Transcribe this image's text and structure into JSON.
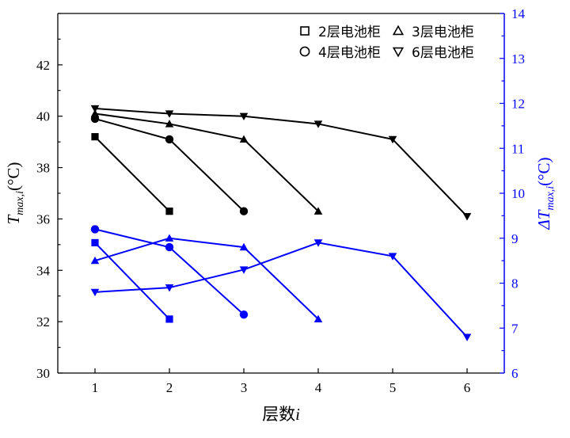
{
  "chart_data": {
    "type": "line",
    "xlabel": "层数i",
    "ylabel_left": "Tmax,i(°C)",
    "ylabel_right": "ΔTmax,i(°C)",
    "x_ticks": [
      1,
      2,
      3,
      4,
      5,
      6
    ],
    "xlim": [
      0.5,
      6.5
    ],
    "ylim_left": [
      30,
      44
    ],
    "yticks_left": [
      30,
      32,
      34,
      36,
      38,
      40,
      42
    ],
    "ylim_right": [
      6,
      14
    ],
    "yticks_right": [
      6,
      7,
      8,
      9,
      10,
      11,
      12,
      13,
      14
    ],
    "colors": {
      "left": "#000000",
      "right": "#0000ff"
    },
    "legend": {
      "position": "top-right",
      "entries": [
        {
          "marker": "square",
          "label": "2层电池柜"
        },
        {
          "marker": "triangle-up",
          "label": "3层电池柜"
        },
        {
          "marker": "circle",
          "label": "4层电池柜"
        },
        {
          "marker": "triangle-down",
          "label": "6层电池柜"
        }
      ]
    },
    "series": [
      {
        "label": "2层电池柜",
        "axis": "left",
        "marker": "square",
        "x": [
          1,
          2
        ],
        "y": [
          39.2,
          36.3
        ]
      },
      {
        "label": "3层电池柜",
        "axis": "left",
        "marker": "triangle-up",
        "x": [
          1,
          2,
          3,
          4
        ],
        "y": [
          40.1,
          39.7,
          39.1,
          36.3
        ]
      },
      {
        "label": "4层电池柜",
        "axis": "left",
        "marker": "circle",
        "x": [
          1,
          2,
          3
        ],
        "y": [
          39.9,
          39.1,
          36.3
        ]
      },
      {
        "label": "6层电池柜",
        "axis": "left",
        "marker": "triangle-down",
        "x": [
          1,
          2,
          3,
          4,
          5,
          6
        ],
        "y": [
          40.3,
          40.1,
          40.0,
          39.7,
          39.1,
          36.1
        ]
      },
      {
        "label": "2层电池柜",
        "axis": "right",
        "marker": "square",
        "x": [
          1,
          2
        ],
        "y": [
          8.9,
          7.2
        ]
      },
      {
        "label": "3层电池柜",
        "axis": "right",
        "marker": "triangle-up",
        "x": [
          1,
          2,
          3,
          4
        ],
        "y": [
          8.5,
          9.0,
          8.8,
          7.2
        ]
      },
      {
        "label": "4层电池柜",
        "axis": "right",
        "marker": "circle",
        "x": [
          1,
          2,
          3
        ],
        "y": [
          9.2,
          8.8,
          7.3
        ]
      },
      {
        "label": "6层电池柜",
        "axis": "right",
        "marker": "triangle-down",
        "x": [
          1,
          2,
          3,
          4,
          5,
          6
        ],
        "y": [
          7.8,
          7.9,
          8.3,
          8.9,
          8.6,
          6.8
        ]
      }
    ]
  }
}
